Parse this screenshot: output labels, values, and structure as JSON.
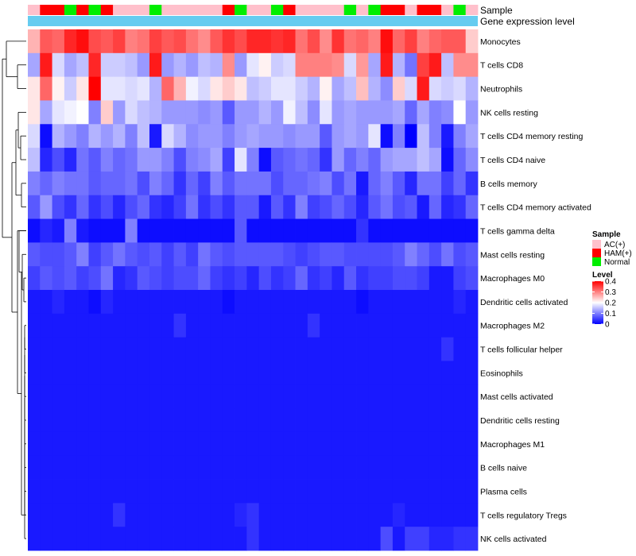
{
  "chart_data": {
    "type": "heatmap",
    "title": "",
    "annotation_tracks": [
      {
        "name": "Sample"
      },
      {
        "name": "Gene expression level",
        "color": "#66ccf0"
      }
    ],
    "sample_groups": [
      {
        "name": "AC(+)",
        "color": "#ffc0cb"
      },
      {
        "name": "HAM(+)",
        "color": "#ff0000"
      },
      {
        "name": "Normal",
        "color": "#00ee00"
      }
    ],
    "sample_annotation": [
      "AC(+)",
      "HAM(+)",
      "HAM(+)",
      "Normal",
      "HAM(+)",
      "Normal",
      "HAM(+)",
      "AC(+)",
      "AC(+)",
      "AC(+)",
      "Normal",
      "AC(+)",
      "AC(+)",
      "AC(+)",
      "AC(+)",
      "AC(+)",
      "HAM(+)",
      "Normal",
      "AC(+)",
      "AC(+)",
      "Normal",
      "HAM(+)",
      "AC(+)",
      "AC(+)",
      "AC(+)",
      "AC(+)",
      "Normal",
      "AC(+)",
      "Normal",
      "HAM(+)",
      "HAM(+)",
      "AC(+)",
      "HAM(+)",
      "HAM(+)",
      "AC(+)",
      "Normal",
      "AC(+)"
    ],
    "rows": [
      "Monocytes",
      "T cells CD8",
      "Neutrophils",
      "NK cells resting",
      "T cells CD4 memory resting",
      "T cells CD4 naive",
      "B cells memory",
      "T cells CD4 memory activated",
      "T cells gamma delta",
      "Mast cells resting",
      "Macrophages M0",
      "Dendritic cells activated",
      "Macrophages M2",
      "T cells follicular helper",
      "Eosinophils",
      "Mast cells activated",
      "Dendritic cells resting",
      "Macrophages M1",
      "B cells naive",
      "Plasma cells",
      "T cells regulatory  Tregs",
      "NK cells activated"
    ],
    "color_scale": {
      "title": "Level",
      "min": 0,
      "max": 0.4,
      "stops": [
        {
          "value": 0,
          "color": "#0000ff"
        },
        {
          "value": 0.2,
          "color": "#ffffff"
        },
        {
          "value": 0.4,
          "color": "#ff0000"
        }
      ],
      "ticks": [
        "0.4",
        "0.3",
        "0.2",
        "0.1",
        "0"
      ]
    },
    "values": [
      [
        0.26,
        0.33,
        0.32,
        0.37,
        0.39,
        0.34,
        0.33,
        0.35,
        0.3,
        0.31,
        0.35,
        0.33,
        0.34,
        0.31,
        0.29,
        0.33,
        0.36,
        0.34,
        0.37,
        0.37,
        0.36,
        0.37,
        0.31,
        0.34,
        0.29,
        0.36,
        0.31,
        0.32,
        0.3,
        0.39,
        0.32,
        0.35,
        0.3,
        0.32,
        0.33,
        0.33,
        0.24
      ],
      [
        0.13,
        0.38,
        0.17,
        0.13,
        0.15,
        0.37,
        0.16,
        0.16,
        0.15,
        0.12,
        0.38,
        0.12,
        0.14,
        0.12,
        0.15,
        0.14,
        0.29,
        0.12,
        0.18,
        0.21,
        0.16,
        0.17,
        0.3,
        0.3,
        0.3,
        0.29,
        0.17,
        0.28,
        0.13,
        0.38,
        0.14,
        0.09,
        0.35,
        0.38,
        0.15,
        0.29,
        0.29
      ],
      [
        0.22,
        0.32,
        0.21,
        0.16,
        0.22,
        0.4,
        0.18,
        0.18,
        0.17,
        0.18,
        0.14,
        0.32,
        0.26,
        0.19,
        0.17,
        0.22,
        0.24,
        0.22,
        0.15,
        0.16,
        0.18,
        0.18,
        0.16,
        0.14,
        0.21,
        0.13,
        0.15,
        0.25,
        0.14,
        0.11,
        0.24,
        0.17,
        0.38,
        0.17,
        0.16,
        0.17,
        0.14
      ],
      [
        0.22,
        0.13,
        0.18,
        0.19,
        0.2,
        0.1,
        0.24,
        0.12,
        0.17,
        0.15,
        0.14,
        0.12,
        0.12,
        0.12,
        0.11,
        0.12,
        0.07,
        0.12,
        0.12,
        0.14,
        0.12,
        0.19,
        0.15,
        0.11,
        0.18,
        0.12,
        0.13,
        0.12,
        0.12,
        0.12,
        0.13,
        0.08,
        0.13,
        0.1,
        0.11,
        0.2,
        0.12
      ],
      [
        0.17,
        0.01,
        0.14,
        0.12,
        0.1,
        0.14,
        0.12,
        0.14,
        0.1,
        0.15,
        0.02,
        0.17,
        0.14,
        0.11,
        0.12,
        0.12,
        0.1,
        0.12,
        0.13,
        0.12,
        0.12,
        0.11,
        0.12,
        0.12,
        0.07,
        0.12,
        0.13,
        0.12,
        0.18,
        0.01,
        0.1,
        0.0,
        0.15,
        0.1,
        0.02,
        0.1,
        0.13
      ],
      [
        0.15,
        0.03,
        0.06,
        0.03,
        0.09,
        0.07,
        0.1,
        0.08,
        0.09,
        0.12,
        0.12,
        0.1,
        0.06,
        0.1,
        0.11,
        0.13,
        0.05,
        0.18,
        0.1,
        0.01,
        0.07,
        0.08,
        0.09,
        0.08,
        0.04,
        0.12,
        0.08,
        0.1,
        0.08,
        0.12,
        0.13,
        0.13,
        0.15,
        0.13,
        0.01,
        0.08,
        0.11
      ],
      [
        0.1,
        0.08,
        0.1,
        0.09,
        0.09,
        0.07,
        0.08,
        0.08,
        0.09,
        0.06,
        0.1,
        0.08,
        0.04,
        0.08,
        0.05,
        0.1,
        0.07,
        0.09,
        0.09,
        0.09,
        0.06,
        0.08,
        0.08,
        0.09,
        0.1,
        0.06,
        0.09,
        0.02,
        0.08,
        0.1,
        0.07,
        0.03,
        0.09,
        0.09,
        0.05,
        0.08,
        0.04
      ],
      [
        0.07,
        0.12,
        0.06,
        0.04,
        0.08,
        0.04,
        0.06,
        0.03,
        0.06,
        0.08,
        0.04,
        0.03,
        0.05,
        0.09,
        0.04,
        0.06,
        0.04,
        0.07,
        0.07,
        0.02,
        0.07,
        0.04,
        0.1,
        0.05,
        0.06,
        0.08,
        0.06,
        0.03,
        0.07,
        0.09,
        0.06,
        0.07,
        0.02,
        0.08,
        0.03,
        0.04,
        0.08
      ],
      [
        0.01,
        0.03,
        0.02,
        0.1,
        0.02,
        0.01,
        0.01,
        0.01,
        0.1,
        0.01,
        0.01,
        0.01,
        0.01,
        0.01,
        0.01,
        0.01,
        0.01,
        0.07,
        0.01,
        0.01,
        0.01,
        0.01,
        0.01,
        0.01,
        0.01,
        0.01,
        0.01,
        0.04,
        0.01,
        0.01,
        0.01,
        0.01,
        0.01,
        0.01,
        0.01,
        0.01,
        0.01
      ],
      [
        0.07,
        0.06,
        0.06,
        0.07,
        0.1,
        0.05,
        0.07,
        0.09,
        0.07,
        0.06,
        0.07,
        0.05,
        0.07,
        0.05,
        0.09,
        0.07,
        0.06,
        0.07,
        0.07,
        0.07,
        0.07,
        0.06,
        0.05,
        0.06,
        0.07,
        0.07,
        0.06,
        0.06,
        0.06,
        0.06,
        0.07,
        0.1,
        0.08,
        0.06,
        0.09,
        0.06,
        0.07
      ],
      [
        0.05,
        0.07,
        0.06,
        0.07,
        0.05,
        0.06,
        0.09,
        0.03,
        0.04,
        0.07,
        0.06,
        0.05,
        0.06,
        0.06,
        0.08,
        0.05,
        0.04,
        0.05,
        0.03,
        0.06,
        0.04,
        0.05,
        0.08,
        0.04,
        0.05,
        0.03,
        0.07,
        0.04,
        0.05,
        0.05,
        0.06,
        0.06,
        0.05,
        0.02,
        0.02,
        0.05,
        0.06
      ],
      [
        0.02,
        0.02,
        0.03,
        0.02,
        0.02,
        0.01,
        0.03,
        0.02,
        0.02,
        0.02,
        0.02,
        0.02,
        0.02,
        0.02,
        0.02,
        0.02,
        0.01,
        0.02,
        0.02,
        0.02,
        0.02,
        0.02,
        0.02,
        0.02,
        0.02,
        0.02,
        0.02,
        0.01,
        0.02,
        0.02,
        0.02,
        0.02,
        0.02,
        0.02,
        0.02,
        0.03,
        0.02
      ],
      [
        0.02,
        0.02,
        0.02,
        0.02,
        0.02,
        0.02,
        0.02,
        0.02,
        0.02,
        0.02,
        0.02,
        0.02,
        0.04,
        0.02,
        0.02,
        0.02,
        0.02,
        0.02,
        0.02,
        0.02,
        0.02,
        0.02,
        0.02,
        0.04,
        0.02,
        0.02,
        0.02,
        0.02,
        0.02,
        0.02,
        0.02,
        0.02,
        0.02,
        0.02,
        0.02,
        0.02,
        0.02
      ],
      [
        0.02,
        0.02,
        0.02,
        0.02,
        0.02,
        0.02,
        0.02,
        0.02,
        0.02,
        0.02,
        0.02,
        0.02,
        0.02,
        0.02,
        0.02,
        0.02,
        0.02,
        0.02,
        0.02,
        0.02,
        0.02,
        0.02,
        0.02,
        0.02,
        0.02,
        0.02,
        0.02,
        0.02,
        0.02,
        0.02,
        0.02,
        0.02,
        0.02,
        0.02,
        0.04,
        0.02,
        0.02
      ],
      [
        0.02,
        0.02,
        0.02,
        0.02,
        0.02,
        0.02,
        0.02,
        0.02,
        0.02,
        0.02,
        0.02,
        0.02,
        0.02,
        0.02,
        0.02,
        0.02,
        0.02,
        0.02,
        0.02,
        0.02,
        0.02,
        0.02,
        0.02,
        0.02,
        0.02,
        0.02,
        0.02,
        0.02,
        0.02,
        0.02,
        0.02,
        0.02,
        0.02,
        0.02,
        0.02,
        0.02,
        0.02
      ],
      [
        0.02,
        0.02,
        0.02,
        0.02,
        0.02,
        0.02,
        0.02,
        0.02,
        0.02,
        0.02,
        0.02,
        0.02,
        0.02,
        0.02,
        0.02,
        0.02,
        0.02,
        0.02,
        0.02,
        0.02,
        0.02,
        0.02,
        0.02,
        0.02,
        0.02,
        0.02,
        0.02,
        0.02,
        0.02,
        0.02,
        0.02,
        0.02,
        0.02,
        0.02,
        0.02,
        0.02,
        0.02
      ],
      [
        0.02,
        0.02,
        0.02,
        0.02,
        0.02,
        0.02,
        0.02,
        0.02,
        0.02,
        0.02,
        0.02,
        0.02,
        0.02,
        0.02,
        0.02,
        0.02,
        0.02,
        0.02,
        0.02,
        0.02,
        0.02,
        0.02,
        0.02,
        0.02,
        0.02,
        0.02,
        0.02,
        0.02,
        0.02,
        0.02,
        0.02,
        0.02,
        0.02,
        0.02,
        0.02,
        0.02,
        0.02
      ],
      [
        0.02,
        0.02,
        0.02,
        0.02,
        0.02,
        0.02,
        0.02,
        0.02,
        0.02,
        0.02,
        0.02,
        0.02,
        0.02,
        0.02,
        0.02,
        0.02,
        0.02,
        0.02,
        0.02,
        0.02,
        0.02,
        0.02,
        0.02,
        0.02,
        0.02,
        0.02,
        0.02,
        0.02,
        0.02,
        0.02,
        0.02,
        0.02,
        0.02,
        0.02,
        0.02,
        0.02,
        0.02
      ],
      [
        0.02,
        0.02,
        0.02,
        0.02,
        0.02,
        0.02,
        0.02,
        0.02,
        0.02,
        0.02,
        0.02,
        0.02,
        0.02,
        0.02,
        0.02,
        0.02,
        0.02,
        0.02,
        0.02,
        0.02,
        0.02,
        0.02,
        0.02,
        0.02,
        0.02,
        0.02,
        0.02,
        0.02,
        0.02,
        0.02,
        0.02,
        0.02,
        0.02,
        0.02,
        0.02,
        0.02,
        0.02
      ],
      [
        0.02,
        0.02,
        0.02,
        0.02,
        0.02,
        0.02,
        0.02,
        0.02,
        0.02,
        0.02,
        0.02,
        0.02,
        0.02,
        0.02,
        0.02,
        0.02,
        0.02,
        0.02,
        0.02,
        0.02,
        0.02,
        0.02,
        0.02,
        0.02,
        0.02,
        0.02,
        0.02,
        0.02,
        0.02,
        0.02,
        0.02,
        0.02,
        0.02,
        0.02,
        0.02,
        0.02,
        0.02
      ],
      [
        0.02,
        0.02,
        0.02,
        0.02,
        0.02,
        0.02,
        0.02,
        0.04,
        0.02,
        0.02,
        0.02,
        0.02,
        0.02,
        0.02,
        0.02,
        0.02,
        0.02,
        0.03,
        0.04,
        0.02,
        0.02,
        0.02,
        0.02,
        0.02,
        0.02,
        0.02,
        0.02,
        0.02,
        0.02,
        0.02,
        0.03,
        0.02,
        0.02,
        0.02,
        0.02,
        0.02,
        0.02
      ],
      [
        0.02,
        0.02,
        0.02,
        0.02,
        0.02,
        0.02,
        0.02,
        0.02,
        0.02,
        0.02,
        0.02,
        0.02,
        0.02,
        0.02,
        0.02,
        0.02,
        0.02,
        0.02,
        0.04,
        0.02,
        0.02,
        0.02,
        0.02,
        0.02,
        0.02,
        0.02,
        0.02,
        0.02,
        0.02,
        0.06,
        0.02,
        0.05,
        0.05,
        0.03,
        0.03,
        0.04,
        0.04
      ]
    ]
  }
}
